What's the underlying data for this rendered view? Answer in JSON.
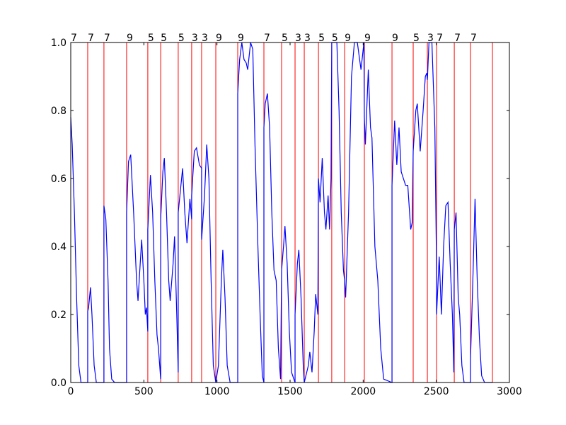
{
  "chart_data": {
    "type": "line",
    "x": [
      0,
      10,
      25,
      40,
      55,
      70,
      116,
      116,
      122,
      135,
      145,
      160,
      175,
      227,
      227,
      240,
      255,
      265,
      280,
      300,
      382,
      382,
      395,
      410,
      430,
      450,
      460,
      475,
      485,
      500,
      510,
      518,
      527,
      527,
      545,
      560,
      575,
      590,
      600,
      615,
      615,
      630,
      640,
      655,
      670,
      680,
      700,
      710,
      725,
      735,
      735,
      765,
      780,
      795,
      815,
      827,
      827,
      845,
      860,
      880,
      895,
      895,
      915,
      930,
      945,
      960,
      975,
      992,
      1010,
      1030,
      1040,
      1055,
      1070,
      1090,
      1142,
      1142,
      1155,
      1170,
      1185,
      1200,
      1210,
      1230,
      1245,
      1260,
      1280,
      1295,
      1310,
      1321,
      1321,
      1330,
      1345,
      1360,
      1375,
      1390,
      1405,
      1420,
      1435,
      1442,
      1455,
      1465,
      1480,
      1495,
      1510,
      1534,
      1534,
      1550,
      1560,
      1575,
      1590,
      1597,
      1625,
      1635,
      1650,
      1665,
      1675,
      1690,
      1694,
      1705,
      1720,
      1735,
      1745,
      1760,
      1770,
      1780,
      1785,
      1820,
      1835,
      1850,
      1865,
      1873,
      1880,
      1900,
      1920,
      1940,
      1960,
      1985,
      2005,
      2008,
      2015,
      2035,
      2050,
      2060,
      2080,
      2100,
      2120,
      2140,
      2197,
      2197,
      2215,
      2230,
      2245,
      2260,
      2275,
      2290,
      2305,
      2325,
      2335,
      2342,
      2360,
      2370,
      2390,
      2410,
      2425,
      2435,
      2439,
      2450,
      2470,
      2490,
      2500,
      2502,
      2520,
      2535,
      2550,
      2565,
      2580,
      2595,
      2610,
      2620,
      2623,
      2635,
      2650,
      2660,
      2675,
      2690,
      2734,
      2734,
      2750,
      2765,
      2780,
      2795,
      2810,
      2830,
      2884
    ],
    "series": [
      {
        "color": "#0000ff",
        "values": [
          0.78,
          0.7,
          0.5,
          0.25,
          0.05,
          0,
          0,
          0.21,
          0.22,
          0.28,
          0.2,
          0.05,
          0,
          0,
          0.52,
          0.48,
          0.3,
          0.1,
          0.01,
          0,
          0,
          0.5,
          0.65,
          0.67,
          0.5,
          0.3,
          0.24,
          0.35,
          0.42,
          0.3,
          0.2,
          0.22,
          0.15,
          0.45,
          0.61,
          0.5,
          0.3,
          0.14,
          0.1,
          0.01,
          0.48,
          0.62,
          0.66,
          0.5,
          0.3,
          0.24,
          0.35,
          0.43,
          0.2,
          0.03,
          0.5,
          0.63,
          0.5,
          0.41,
          0.54,
          0.48,
          0.55,
          0.68,
          0.69,
          0.64,
          0.63,
          0.42,
          0.55,
          0.7,
          0.6,
          0.3,
          0.05,
          0,
          0.05,
          0.3,
          0.39,
          0.25,
          0.05,
          0,
          0,
          0.85,
          0.95,
          1.0,
          0.95,
          0.94,
          0.92,
          1.0,
          0.98,
          0.7,
          0.4,
          0.2,
          0.02,
          0,
          0.75,
          0.82,
          0.85,
          0.75,
          0.5,
          0.33,
          0.3,
          0.1,
          0.01,
          0.33,
          0.4,
          0.46,
          0.35,
          0.15,
          0.03,
          0,
          0.2,
          0.35,
          0.39,
          0.25,
          0.05,
          0,
          0.05,
          0.09,
          0.03,
          0.15,
          0.26,
          0.2,
          0.6,
          0.53,
          0.66,
          0.5,
          0.45,
          0.55,
          0.45,
          0.6,
          1.0,
          1.0,
          0.8,
          0.5,
          0.33,
          0.3,
          0.25,
          0.5,
          0.9,
          1.0,
          1.0,
          0.92,
          1.0,
          0.78,
          0.7,
          0.92,
          0.75,
          0.72,
          0.4,
          0.3,
          0.1,
          0.01,
          0,
          0.58,
          0.77,
          0.64,
          0.75,
          0.62,
          0.6,
          0.58,
          0.58,
          0.45,
          0.47,
          0.68,
          0.8,
          0.82,
          0.68,
          0.8,
          0.9,
          0.91,
          0.89,
          1.0,
          1.0,
          0.75,
          0.4,
          0.2,
          0.37,
          0.2,
          0.4,
          0.52,
          0.53,
          0.35,
          0.2,
          0.03,
          0.45,
          0.5,
          0.25,
          0.2,
          0.05,
          0,
          0,
          0.07,
          0.3,
          0.54,
          0.3,
          0.13,
          0.02,
          0,
          0
        ]
      }
    ],
    "segments": {
      "color": "#ff0000",
      "x": [
        0,
        116,
        227,
        382,
        527,
        615,
        735,
        827,
        895,
        992,
        1142,
        1321,
        1442,
        1534,
        1597,
        1694,
        1785,
        1873,
        2008,
        2197,
        2342,
        2439,
        2502,
        2623,
        2734,
        2884
      ],
      "labels": [
        7,
        7,
        7,
        9,
        5,
        5,
        5,
        3,
        3,
        9,
        9,
        7,
        5,
        3,
        3,
        5,
        5,
        9,
        9,
        9,
        5,
        3,
        7,
        7,
        7,
        null
      ]
    },
    "xlim": [
      0,
      3000
    ],
    "xticks": [
      0,
      500,
      1000,
      1500,
      2000,
      2500,
      3000
    ],
    "ylim": [
      0,
      1
    ],
    "yticks": [
      {
        "value": 0,
        "label": "0.0"
      },
      {
        "value": 0.2,
        "label": "0.2"
      },
      {
        "value": 0.4,
        "label": "0.4"
      },
      {
        "value": 0.6,
        "label": "0.6"
      },
      {
        "value": 0.8,
        "label": "0.8"
      },
      {
        "value": 1,
        "label": "1.0"
      }
    ]
  }
}
